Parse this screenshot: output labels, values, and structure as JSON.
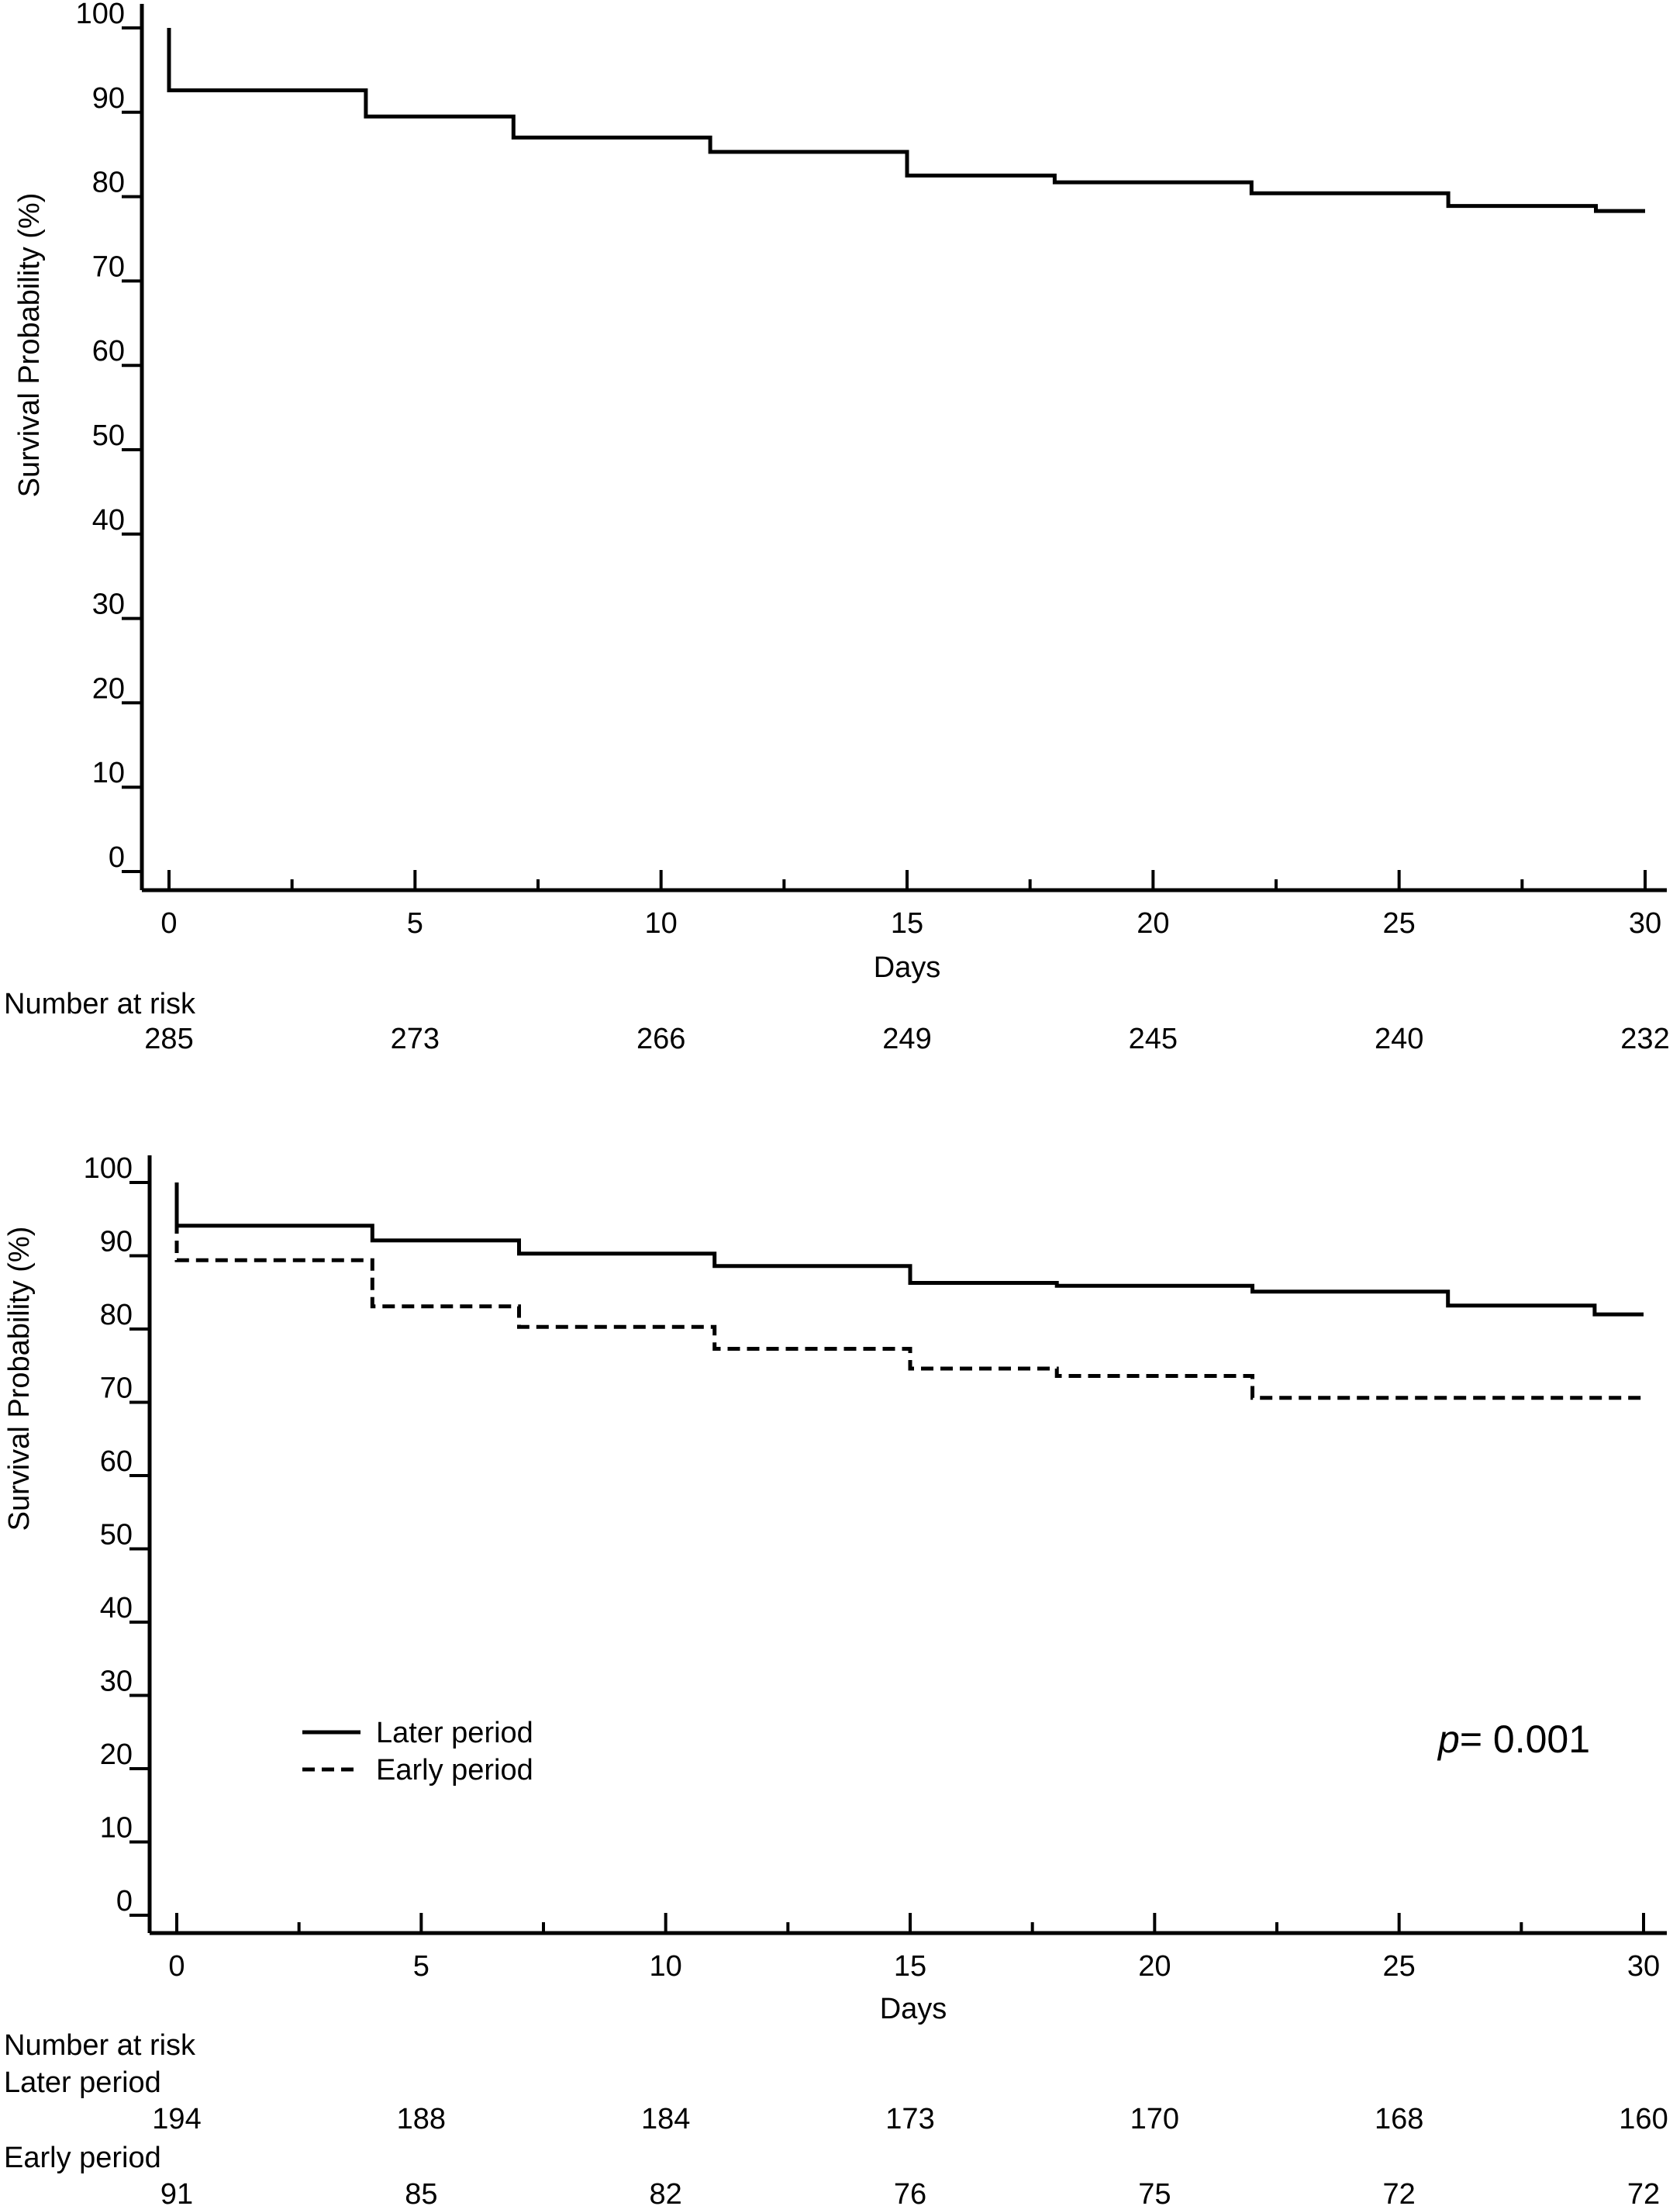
{
  "chart_data": [
    {
      "type": "line",
      "step": true,
      "xlabel": "Days",
      "ylabel": "Survival Probability (%)",
      "xlim": [
        0,
        30
      ],
      "ylim": [
        0,
        100
      ],
      "x_ticks": [
        0,
        5,
        10,
        15,
        20,
        25,
        30
      ],
      "y_ticks": [
        0,
        10,
        20,
        30,
        40,
        50,
        60,
        70,
        80,
        90,
        100
      ],
      "series": [
        {
          "style": "solid",
          "points": [
            [
              0,
              100
            ],
            [
              0,
              92.6
            ],
            [
              4,
              92.6
            ],
            [
              4,
              89.5
            ],
            [
              7,
              89.5
            ],
            [
              7,
              87.0
            ],
            [
              11,
              87.0
            ],
            [
              11,
              85.3
            ],
            [
              15,
              85.3
            ],
            [
              15,
              82.5
            ],
            [
              18,
              82.5
            ],
            [
              18,
              81.7
            ],
            [
              22,
              81.7
            ],
            [
              22,
              80.4
            ],
            [
              26,
              80.4
            ],
            [
              26,
              78.9
            ],
            [
              29,
              78.9
            ],
            [
              29,
              78.3
            ],
            [
              30,
              78.3
            ]
          ]
        }
      ],
      "risk_table": {
        "title": "Number at risk",
        "rows": [
          {
            "label": "",
            "values": [
              "285",
              "273",
              "266",
              "249",
              "245",
              "240",
              "232"
            ]
          }
        ]
      }
    },
    {
      "type": "line",
      "step": true,
      "xlabel": "Days",
      "ylabel": "Survival Probability (%)",
      "xlim": [
        0,
        30
      ],
      "ylim": [
        0,
        100
      ],
      "x_ticks": [
        0,
        5,
        10,
        15,
        20,
        25,
        30
      ],
      "y_ticks": [
        0,
        10,
        20,
        30,
        40,
        50,
        60,
        70,
        80,
        90,
        100
      ],
      "legend_position": "lower-left",
      "series": [
        {
          "name": "Later period",
          "style": "solid",
          "points": [
            [
              0,
              100
            ],
            [
              0,
              94.1
            ],
            [
              4,
              94.1
            ],
            [
              4,
              92.1
            ],
            [
              7,
              92.1
            ],
            [
              7,
              90.3
            ],
            [
              11,
              90.3
            ],
            [
              11,
              88.6
            ],
            [
              15,
              88.6
            ],
            [
              15,
              86.3
            ],
            [
              18,
              86.3
            ],
            [
              18,
              85.9
            ],
            [
              22,
              85.9
            ],
            [
              22,
              85.1
            ],
            [
              26,
              85.1
            ],
            [
              26,
              83.2
            ],
            [
              29,
              83.2
            ],
            [
              29,
              82.0
            ],
            [
              30,
              82.0
            ]
          ]
        },
        {
          "name": "Early period",
          "style": "dashed",
          "points": [
            [
              0,
              100
            ],
            [
              0,
              89.4
            ],
            [
              4,
              89.4
            ],
            [
              4,
              83.1
            ],
            [
              7,
              83.1
            ],
            [
              7,
              80.3
            ],
            [
              11,
              80.3
            ],
            [
              11,
              77.3
            ],
            [
              15,
              77.3
            ],
            [
              15,
              74.6
            ],
            [
              18,
              74.6
            ],
            [
              18,
              73.6
            ],
            [
              22,
              73.6
            ],
            [
              22,
              70.6
            ],
            [
              30,
              70.6
            ]
          ]
        }
      ],
      "annotation": {
        "italic": "p",
        "text": "= 0.001"
      },
      "risk_table": {
        "title": "Number at risk",
        "rows": [
          {
            "label": "Later period",
            "values": [
              "194",
              "188",
              "184",
              "173",
              "170",
              "168",
              "160"
            ]
          },
          {
            "label": "Early period",
            "values": [
              "91",
              "85",
              "82",
              "76",
              "75",
              "72",
              "72"
            ]
          }
        ]
      }
    }
  ]
}
